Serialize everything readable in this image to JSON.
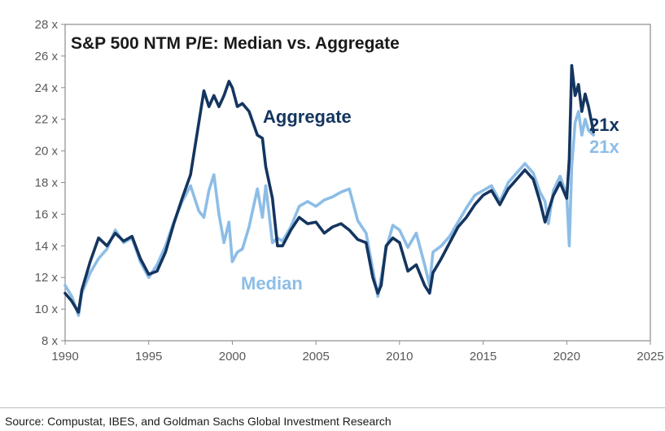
{
  "colors": {
    "aggregate": "#14355f",
    "median": "#8dbde6",
    "axis": "#7f7f7f",
    "text": "#595959"
  },
  "source": "Source: Compustat, IBES, and Goldman Sachs Global Investment Research",
  "chart_data": {
    "type": "line",
    "title": "S&P 500 NTM P/E: Median vs. Aggregate",
    "xlabel": "",
    "ylabel": "",
    "xlim": [
      1990,
      2025
    ],
    "ylim": [
      8,
      28
    ],
    "x_ticks": [
      "1990",
      "1995",
      "2000",
      "2005",
      "2010",
      "2015",
      "2020",
      "2025"
    ],
    "x_tick_values": [
      1990,
      1995,
      2000,
      2005,
      2010,
      2015,
      2020,
      2025
    ],
    "y_ticks": [
      "8 x",
      "10 x",
      "12 x",
      "14 x",
      "16 x",
      "18 x",
      "20 x",
      "22 x",
      "24 x",
      "26 x",
      "28 x"
    ],
    "y_tick_values": [
      8,
      10,
      12,
      14,
      16,
      18,
      20,
      22,
      24,
      26,
      28
    ],
    "grid": false,
    "series": [
      {
        "name": "Median",
        "label": "Median",
        "end_label": "21x",
        "color": "#8dbde6",
        "x": [
          1990,
          1990.4,
          1990.8,
          1991,
          1991.5,
          1992,
          1992.5,
          1993,
          1993.5,
          1994,
          1994.5,
          1995,
          1995.5,
          1996,
          1996.5,
          1997,
          1997.5,
          1998,
          1998.3,
          1998.6,
          1998.9,
          1999.2,
          1999.5,
          1999.8,
          2000,
          2000.3,
          2000.6,
          2001,
          2001.5,
          2001.8,
          2002,
          2002.4,
          2002.7,
          2003,
          2003.5,
          2004,
          2004.5,
          2005,
          2005.5,
          2006,
          2006.5,
          2007,
          2007.5,
          2008,
          2008.4,
          2008.7,
          2008.9,
          2009.2,
          2009.6,
          2010,
          2010.5,
          2011,
          2011.5,
          2011.8,
          2012,
          2012.5,
          2013,
          2013.5,
          2014,
          2014.5,
          2015,
          2015.5,
          2016,
          2016.5,
          2017,
          2017.5,
          2018,
          2018.4,
          2018.7,
          2018.9,
          2019.2,
          2019.6,
          2020,
          2020.15,
          2020.3,
          2020.5,
          2020.7,
          2020.9,
          2021.1,
          2021.3,
          2021.6
        ],
        "values": [
          11.5,
          10.8,
          9.6,
          11.0,
          12.3,
          13.2,
          13.8,
          15.0,
          14.2,
          14.5,
          13.0,
          12.0,
          12.8,
          14.0,
          15.5,
          16.8,
          17.8,
          16.2,
          15.8,
          17.5,
          18.5,
          16.0,
          14.2,
          15.5,
          13.0,
          13.6,
          13.8,
          15.2,
          17.6,
          15.8,
          17.8,
          14.2,
          14.5,
          14.3,
          15.2,
          16.5,
          16.8,
          16.5,
          16.9,
          17.1,
          17.4,
          17.6,
          15.6,
          14.8,
          12.5,
          10.8,
          12.0,
          13.8,
          15.3,
          15.0,
          13.9,
          14.8,
          12.8,
          11.5,
          13.6,
          14.0,
          14.6,
          15.5,
          16.4,
          17.2,
          17.5,
          17.8,
          16.8,
          18.0,
          18.6,
          19.2,
          18.6,
          17.4,
          16.8,
          15.4,
          17.5,
          18.4,
          17.2,
          14.0,
          19.0,
          21.8,
          22.5,
          21.0,
          22.0,
          21.3,
          21.0
        ]
      },
      {
        "name": "Aggregate",
        "label": "Aggregate",
        "end_label": "21x",
        "color": "#14355f",
        "x": [
          1990,
          1990.4,
          1990.8,
          1991,
          1991.5,
          1992,
          1992.5,
          1993,
          1993.5,
          1994,
          1994.5,
          1995,
          1995.5,
          1996,
          1996.5,
          1997,
          1997.5,
          1998,
          1998.3,
          1998.6,
          1998.9,
          1999.2,
          1999.5,
          1999.8,
          2000,
          2000.3,
          2000.6,
          2001,
          2001.5,
          2001.8,
          2002,
          2002.4,
          2002.7,
          2003,
          2003.5,
          2004,
          2004.5,
          2005,
          2005.5,
          2006,
          2006.5,
          2007,
          2007.5,
          2008,
          2008.4,
          2008.7,
          2008.9,
          2009.2,
          2009.6,
          2010,
          2010.5,
          2011,
          2011.5,
          2011.8,
          2012,
          2012.5,
          2013,
          2013.5,
          2014,
          2014.5,
          2015,
          2015.5,
          2016,
          2016.5,
          2017,
          2017.5,
          2018,
          2018.4,
          2018.7,
          2018.9,
          2019.2,
          2019.6,
          2020,
          2020.15,
          2020.3,
          2020.5,
          2020.7,
          2020.9,
          2021.1,
          2021.3,
          2021.6
        ],
        "values": [
          11.0,
          10.5,
          9.8,
          11.2,
          13.0,
          14.5,
          14.0,
          14.8,
          14.3,
          14.6,
          13.2,
          12.2,
          12.4,
          13.6,
          15.4,
          17.0,
          18.5,
          21.8,
          23.8,
          22.8,
          23.5,
          22.8,
          23.5,
          24.4,
          24.0,
          22.8,
          23.0,
          22.5,
          21.0,
          20.8,
          19.0,
          17.0,
          14.0,
          14.0,
          15.0,
          15.8,
          15.4,
          15.5,
          14.8,
          15.2,
          15.4,
          15.0,
          14.4,
          14.2,
          12.0,
          11.0,
          11.5,
          14.0,
          14.5,
          14.2,
          12.4,
          12.8,
          11.5,
          11.0,
          12.3,
          13.2,
          14.2,
          15.2,
          15.8,
          16.6,
          17.2,
          17.5,
          16.6,
          17.6,
          18.2,
          18.8,
          18.2,
          16.8,
          15.5,
          16.2,
          17.2,
          18.0,
          17.0,
          19.5,
          25.4,
          23.5,
          24.2,
          22.5,
          23.6,
          22.8,
          21.2
        ]
      }
    ]
  }
}
